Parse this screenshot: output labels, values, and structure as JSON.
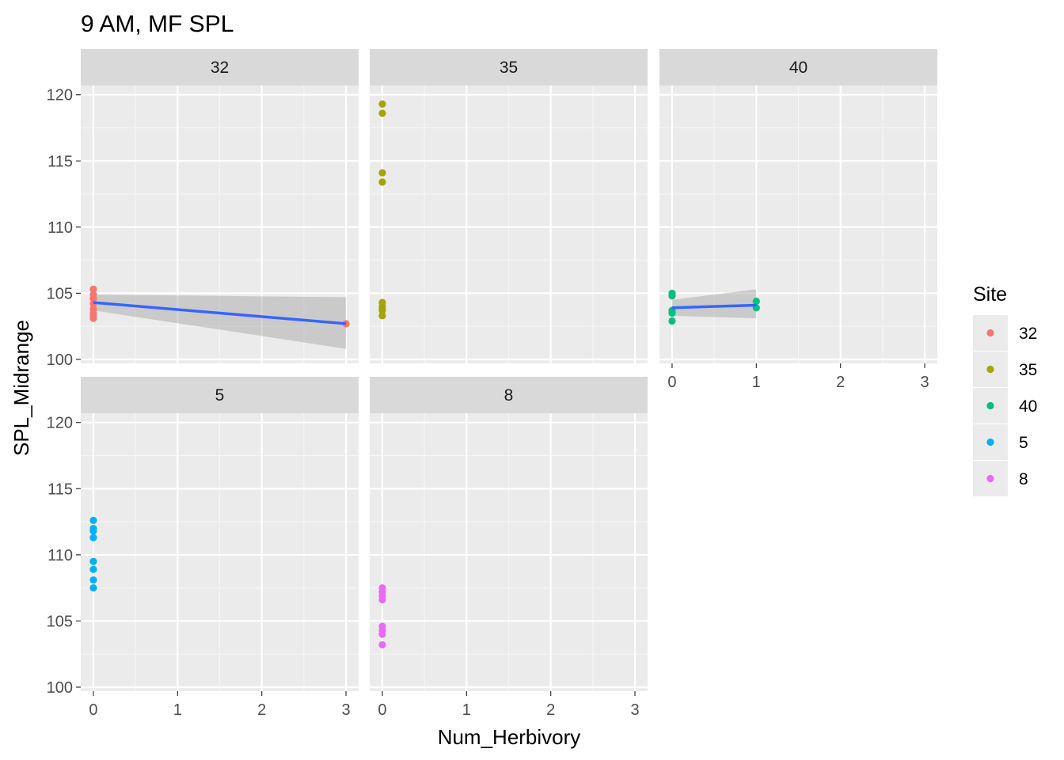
{
  "chart_data": {
    "type": "scatter",
    "title": "9 AM, MF SPL",
    "xlabel": "Num_Herbivory",
    "ylabel": "SPL_Midrange",
    "xlim": [
      -0.15,
      3.15
    ],
    "ylim": [
      99.7,
      120.7
    ],
    "x_ticks": [
      0,
      1,
      2,
      3
    ],
    "y_ticks": [
      100,
      105,
      110,
      115,
      120
    ],
    "grid": true,
    "legend_title": "Site",
    "legend_position": "right",
    "facet_label": "Site",
    "panels": [
      {
        "label": "32",
        "color": "#F8766D",
        "points": [
          [
            0,
            105.3
          ],
          [
            0,
            104.9
          ],
          [
            0,
            104.6
          ],
          [
            0,
            104.2
          ],
          [
            0,
            103.8
          ],
          [
            0,
            103.5
          ],
          [
            0,
            103.3
          ],
          [
            0,
            103.1
          ],
          [
            3,
            102.7
          ]
        ],
        "fit": {
          "x": [
            0,
            3
          ],
          "y": [
            104.3,
            102.7
          ],
          "ci_lower": [
            103.7,
            100.8
          ],
          "ci_upper": [
            104.9,
            104.7
          ]
        }
      },
      {
        "label": "35",
        "color": "#A3A500",
        "points": [
          [
            0,
            119.3
          ],
          [
            0,
            118.6
          ],
          [
            0,
            114.1
          ],
          [
            0,
            113.4
          ],
          [
            0,
            104.3
          ],
          [
            0,
            104.0
          ],
          [
            0,
            103.8
          ],
          [
            0,
            103.7
          ],
          [
            0,
            103.3
          ]
        ],
        "fit": null
      },
      {
        "label": "40",
        "color": "#00BF7D",
        "points": [
          [
            0,
            105.0
          ],
          [
            0,
            104.8
          ],
          [
            0,
            103.7
          ],
          [
            0,
            103.5
          ],
          [
            0,
            102.9
          ],
          [
            1,
            104.4
          ],
          [
            1,
            103.9
          ]
        ],
        "fit": {
          "x": [
            0,
            1
          ],
          "y": [
            103.9,
            104.1
          ],
          "ci_lower": [
            103.3,
            103.1
          ],
          "ci_upper": [
            104.5,
            105.3
          ]
        }
      },
      {
        "label": "5",
        "color": "#00B0F6",
        "points": [
          [
            0,
            112.6
          ],
          [
            0,
            112.0
          ],
          [
            0,
            111.8
          ],
          [
            0,
            111.3
          ],
          [
            0,
            109.5
          ],
          [
            0,
            108.9
          ],
          [
            0,
            108.1
          ],
          [
            0,
            107.5
          ]
        ],
        "fit": null
      },
      {
        "label": "8",
        "color": "#E76BF3",
        "points": [
          [
            0,
            107.5
          ],
          [
            0,
            107.2
          ],
          [
            0,
            106.9
          ],
          [
            0,
            106.6
          ],
          [
            0,
            104.6
          ],
          [
            0,
            104.3
          ],
          [
            0,
            104.0
          ],
          [
            0,
            103.2
          ]
        ],
        "fit": null
      }
    ],
    "legend": [
      {
        "label": "32",
        "color": "#F8766D"
      },
      {
        "label": "35",
        "color": "#A3A500"
      },
      {
        "label": "40",
        "color": "#00BF7D"
      },
      {
        "label": "5",
        "color": "#00B0F6"
      },
      {
        "label": "8",
        "color": "#E76BF3"
      }
    ],
    "fit_line_color": "#3366FF",
    "ci_band_color": "#999999"
  }
}
